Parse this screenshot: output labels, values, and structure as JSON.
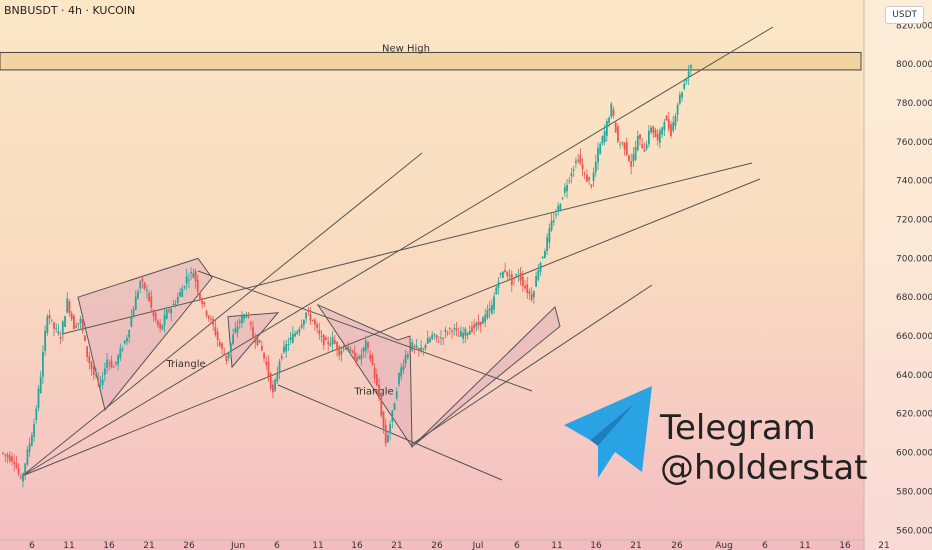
{
  "header": {
    "title": "BNBUSDT · 4h · KUCOIN",
    "currency": "USDT"
  },
  "telegram": {
    "line1": "Telegram",
    "line2": "@holderstat",
    "icon": "telegram-paper-plane-icon"
  },
  "chart_data": {
    "type": "candlestick",
    "colors": {
      "up": "#26a69a",
      "down": "#ef5350",
      "lines": "#555555",
      "pattern_fill": "#d69bb8"
    },
    "y_axis": {
      "ticks": [
        "820.000",
        "800.000",
        "780.000",
        "760.000",
        "740.000",
        "720.000",
        "700.000",
        "680.000",
        "660.000",
        "640.000",
        "620.000",
        "600.000",
        "580.000",
        "560.000"
      ],
      "range": [
        555,
        833
      ]
    },
    "x_axis": {
      "ticks": [
        "6",
        "11",
        "16",
        "21",
        "26",
        "Jun",
        "6",
        "11",
        "16",
        "21",
        "26",
        "Jul",
        "6",
        "11",
        "16",
        "21",
        "26",
        "Aug",
        "6",
        "11",
        "16",
        "21"
      ]
    },
    "annotations": [
      {
        "id": "new-high",
        "label": "New High",
        "zone": [
          797,
          806
        ]
      },
      {
        "id": "triangle-1",
        "label": "Triangle"
      },
      {
        "id": "triangle-2",
        "label": "Triangle"
      }
    ],
    "price_path": [
      [
        0,
        600
      ],
      [
        1,
        598
      ],
      [
        2,
        596
      ],
      [
        3,
        585
      ],
      [
        4,
        600
      ],
      [
        5,
        615
      ],
      [
        6,
        640
      ],
      [
        7,
        672
      ],
      [
        8,
        664
      ],
      [
        9,
        660
      ],
      [
        10,
        678
      ],
      [
        11,
        665
      ],
      [
        12,
        668
      ],
      [
        13,
        650
      ],
      [
        14,
        640
      ],
      [
        15,
        635
      ],
      [
        16,
        648
      ],
      [
        17,
        644
      ],
      [
        18,
        652
      ],
      [
        19,
        660
      ],
      [
        20,
        675
      ],
      [
        21,
        688
      ],
      [
        22,
        683
      ],
      [
        23,
        670
      ],
      [
        24,
        663
      ],
      [
        25,
        672
      ],
      [
        26,
        676
      ],
      [
        27,
        682
      ],
      [
        28,
        690
      ],
      [
        29,
        693
      ],
      [
        30,
        680
      ],
      [
        31,
        672
      ],
      [
        32,
        665
      ],
      [
        33,
        655
      ],
      [
        34,
        648
      ],
      [
        35,
        660
      ],
      [
        36,
        668
      ],
      [
        37,
        672
      ],
      [
        38,
        660
      ],
      [
        39,
        656
      ],
      [
        40,
        645
      ],
      [
        41,
        630
      ],
      [
        42,
        648
      ],
      [
        43,
        655
      ],
      [
        44,
        660
      ],
      [
        45,
        665
      ],
      [
        46,
        672
      ],
      [
        47,
        668
      ],
      [
        48,
        660
      ],
      [
        49,
        656
      ],
      [
        50,
        658
      ],
      [
        51,
        652
      ],
      [
        52,
        655
      ],
      [
        53,
        650
      ],
      [
        54,
        648
      ],
      [
        55,
        656
      ],
      [
        56,
        645
      ],
      [
        57,
        628
      ],
      [
        58,
        605
      ],
      [
        59,
        620
      ],
      [
        60,
        640
      ],
      [
        61,
        650
      ],
      [
        62,
        655
      ],
      [
        63,
        652
      ],
      [
        64,
        656
      ],
      [
        65,
        660
      ],
      [
        66,
        658
      ],
      [
        67,
        662
      ],
      [
        68,
        664
      ],
      [
        69,
        660
      ],
      [
        70,
        662
      ],
      [
        71,
        664
      ],
      [
        72,
        666
      ],
      [
        73,
        670
      ],
      [
        74,
        675
      ],
      [
        75,
        690
      ],
      [
        76,
        694
      ],
      [
        77,
        688
      ],
      [
        78,
        692
      ],
      [
        79,
        685
      ],
      [
        80,
        680
      ],
      [
        81,
        695
      ],
      [
        82,
        705
      ],
      [
        83,
        718
      ],
      [
        84,
        726
      ],
      [
        85,
        736
      ],
      [
        86,
        745
      ],
      [
        87,
        752
      ],
      [
        88,
        742
      ],
      [
        89,
        738
      ],
      [
        90,
        755
      ],
      [
        91,
        765
      ],
      [
        92,
        778
      ],
      [
        93,
        760
      ],
      [
        94,
        758
      ],
      [
        95,
        748
      ],
      [
        96,
        762
      ],
      [
        97,
        756
      ],
      [
        98,
        768
      ],
      [
        99,
        760
      ],
      [
        100,
        772
      ],
      [
        101,
        765
      ],
      [
        102,
        780
      ],
      [
        103,
        790
      ],
      [
        104,
        800
      ]
    ]
  }
}
